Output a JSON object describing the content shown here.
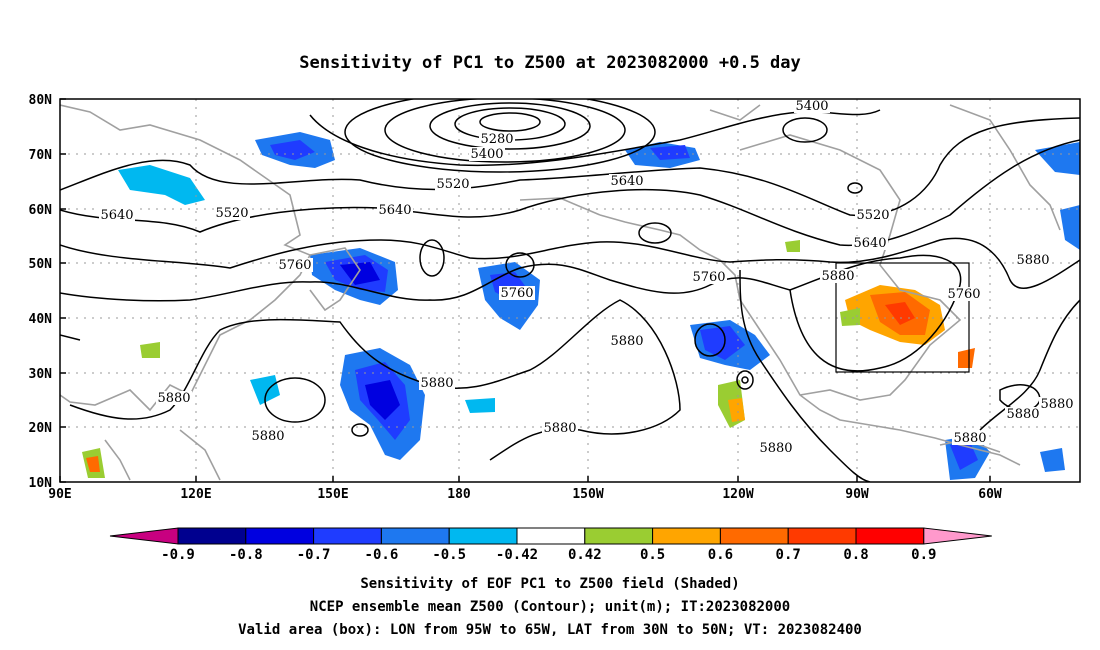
{
  "title": "Sensitivity of PC1 to Z500 at 2023082000 +0.5 day",
  "map": {
    "lat_ticks": [
      "80N",
      "70N",
      "60N",
      "50N",
      "40N",
      "30N",
      "20N",
      "10N"
    ],
    "lon_ticks": [
      "90E",
      "120E",
      "150E",
      "180",
      "150W",
      "120W",
      "90W",
      "60W"
    ],
    "valid_box": {
      "lon_west": "95W",
      "lon_east": "65W",
      "lat_south": "30N",
      "lat_north": "50N"
    },
    "contour_labels": [
      {
        "text": "5280"
      },
      {
        "text": "5400"
      },
      {
        "text": "5400"
      },
      {
        "text": "5520"
      },
      {
        "text": "5520"
      },
      {
        "text": "5520"
      },
      {
        "text": "5640"
      },
      {
        "text": "5640"
      },
      {
        "text": "5640"
      },
      {
        "text": "5640"
      },
      {
        "text": "5760"
      },
      {
        "text": "5760"
      },
      {
        "text": "5760"
      },
      {
        "text": "5760"
      },
      {
        "text": "5880"
      },
      {
        "text": "5880"
      },
      {
        "text": "5880"
      },
      {
        "text": "5880"
      },
      {
        "text": "5880"
      },
      {
        "text": "5880"
      },
      {
        "text": "5880"
      },
      {
        "text": "5880"
      },
      {
        "text": "5880"
      },
      {
        "text": "5880"
      },
      {
        "text": "5880"
      }
    ]
  },
  "colorbar": {
    "labels": [
      "-0.9",
      "-0.8",
      "-0.7",
      "-0.6",
      "-0.5",
      "-0.42",
      "0.42",
      "0.5",
      "0.6",
      "0.7",
      "0.8",
      "0.9"
    ],
    "colors": [
      "#00008f",
      "#0000e0",
      "#1f3cff",
      "#1e78f0",
      "#00b8f0",
      "#ffffff",
      "#9acd32",
      "#ffa500",
      "#ff6a00",
      "#ff3a00",
      "#ff0000"
    ],
    "low_extend_color": "#c80080",
    "high_extend_color": "#ff99cc"
  },
  "captions": [
    "Sensitivity of EOF PC1 to Z500 field (Shaded)",
    "NCEP ensemble mean Z500 (Contour); unit(m); IT:2023082000",
    "Valid area (box): LON from 95W to 65W, LAT from 30N to 50N; VT: 2023082400"
  ]
}
